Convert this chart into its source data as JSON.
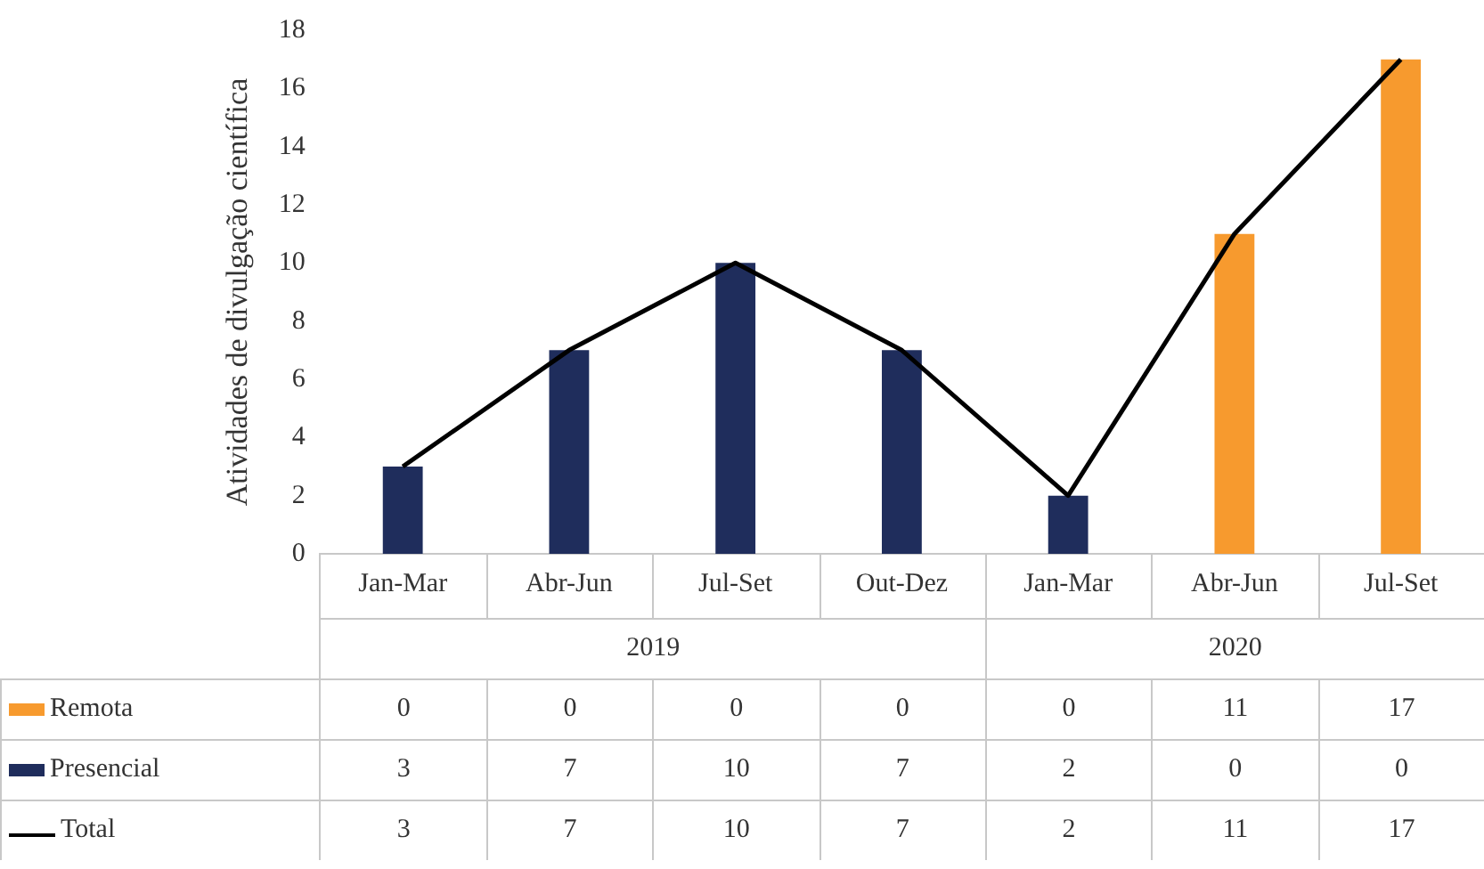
{
  "chart_data": {
    "type": "bar",
    "stacked": true,
    "ylabel": "Atividades de divulgação científica",
    "categories": [
      "Jan-Mar",
      "Abr-Jun",
      "Jul-Set",
      "Out-Dez",
      "Jan-Mar",
      "Abr-Jun",
      "Jul-Set"
    ],
    "series": [
      {
        "name": "Remota",
        "color": "#f79a2e",
        "values": [
          0,
          0,
          0,
          0,
          0,
          11,
          17
        ]
      },
      {
        "name": "Presencial",
        "color": "#1f2d5c",
        "values": [
          3,
          7,
          10,
          7,
          2,
          0,
          0
        ]
      },
      {
        "name": "Total",
        "type": "line",
        "color": "#000000",
        "values": [
          3,
          7,
          10,
          7,
          2,
          11,
          17
        ]
      }
    ],
    "annotations": [
      "2019",
      "2020"
    ],
    "ylim": [
      0,
      18
    ],
    "yticks": [
      0,
      2,
      4,
      6,
      8,
      10,
      12,
      14,
      16,
      18
    ],
    "grid": false,
    "legend": "bottom",
    "data_labels": true,
    "marker": "none"
  }
}
